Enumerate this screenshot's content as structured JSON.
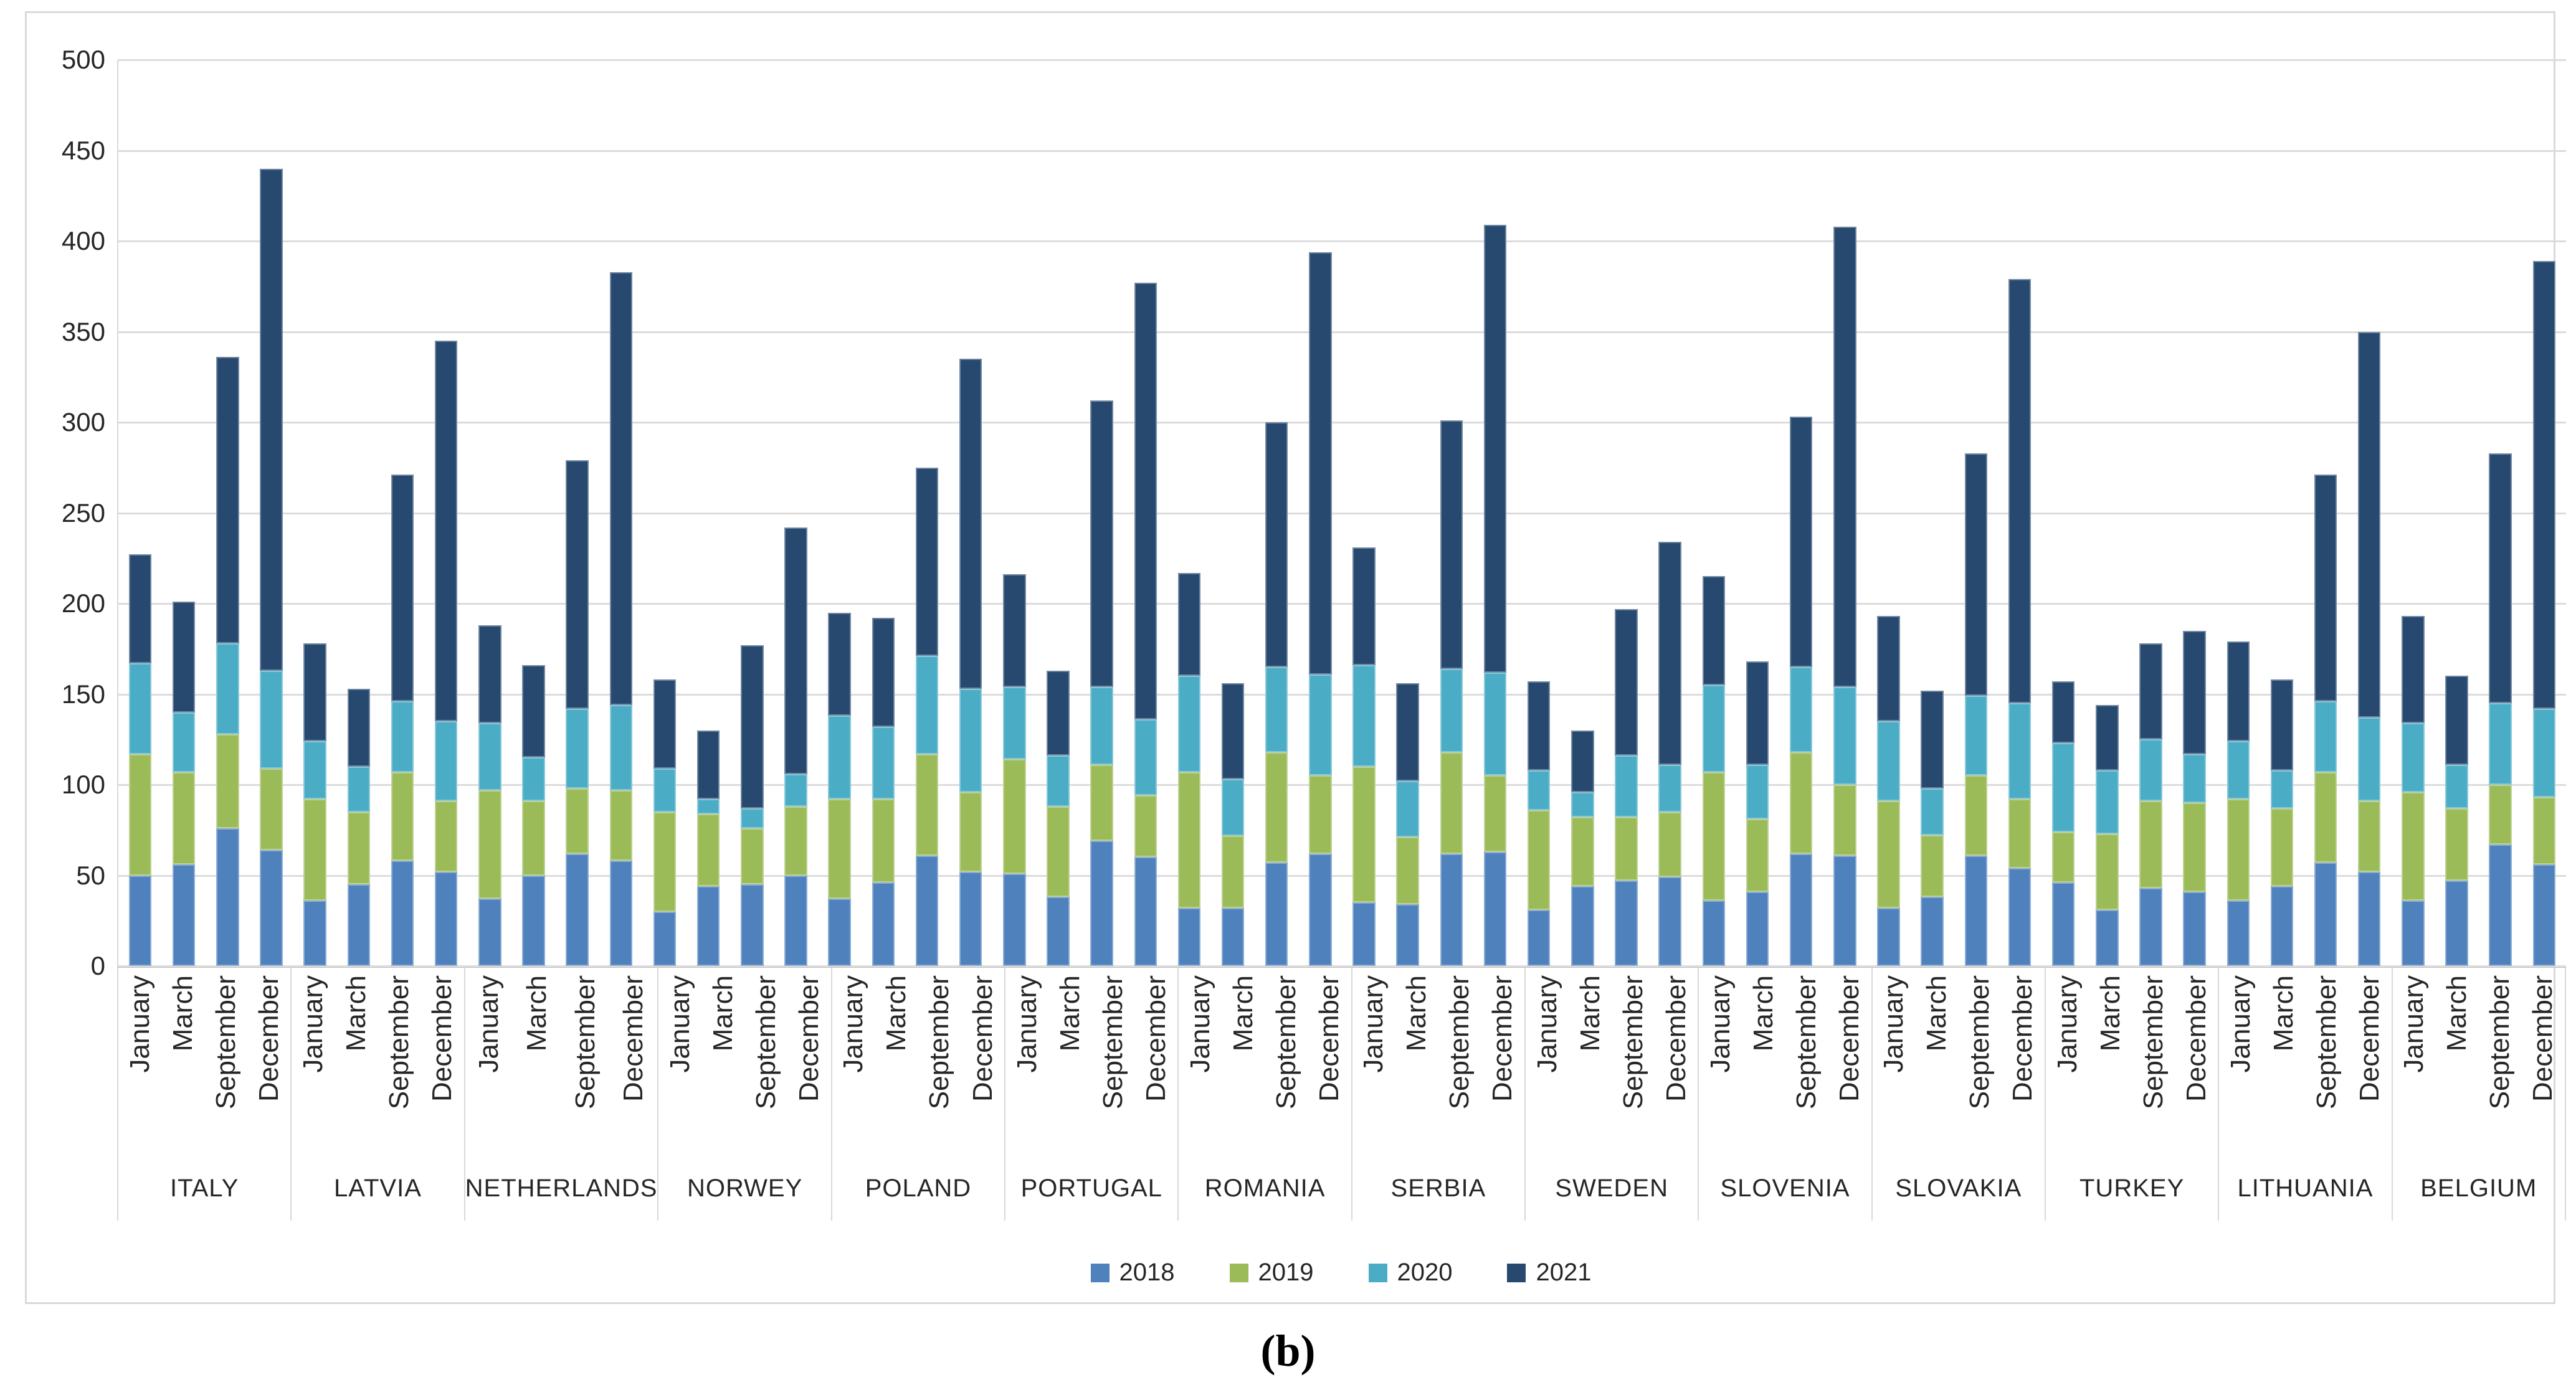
{
  "figure": {
    "caption": "(b)"
  },
  "chart_data": {
    "type": "bar",
    "stacked": true,
    "title": "",
    "xlabel": "",
    "ylabel": "",
    "ylim": [
      0,
      500
    ],
    "y_ticks": [
      0,
      50,
      100,
      150,
      200,
      250,
      300,
      350,
      400,
      450,
      500
    ],
    "grid": true,
    "legend_position": "bottom",
    "months": [
      "January",
      "March",
      "September",
      "December"
    ],
    "series": [
      {
        "name": "2018",
        "color": "#4F81BD"
      },
      {
        "name": "2019",
        "color": "#9BBB59"
      },
      {
        "name": "2020",
        "color": "#4BACC6"
      },
      {
        "name": "2021",
        "color": "#27496F"
      }
    ],
    "groups": [
      {
        "country": "ITALY",
        "values": {
          "2018": [
            50,
            56,
            76,
            64
          ],
          "2019": [
            67,
            51,
            52,
            45
          ],
          "2020": [
            50,
            33,
            50,
            54
          ],
          "2021": [
            60,
            61,
            158,
            277
          ]
        }
      },
      {
        "country": "LATVIA",
        "values": {
          "2018": [
            36,
            45,
            58,
            52
          ],
          "2019": [
            56,
            40,
            49,
            39
          ],
          "2020": [
            32,
            25,
            39,
            44
          ],
          "2021": [
            54,
            43,
            125,
            210
          ]
        }
      },
      {
        "country": "NETHERLANDS",
        "values": {
          "2018": [
            37,
            50,
            62,
            58
          ],
          "2019": [
            60,
            41,
            36,
            39
          ],
          "2020": [
            37,
            24,
            44,
            47
          ],
          "2021": [
            54,
            51,
            137,
            239
          ]
        }
      },
      {
        "country": "NORWEY",
        "values": {
          "2018": [
            30,
            44,
            45,
            50
          ],
          "2019": [
            55,
            40,
            31,
            38
          ],
          "2020": [
            24,
            8,
            11,
            18
          ],
          "2021": [
            49,
            38,
            90,
            136
          ]
        }
      },
      {
        "country": "POLAND",
        "values": {
          "2018": [
            37,
            46,
            61,
            52
          ],
          "2019": [
            55,
            46,
            56,
            44
          ],
          "2020": [
            46,
            40,
            54,
            57
          ],
          "2021": [
            57,
            60,
            104,
            182
          ]
        }
      },
      {
        "country": "PORTUGAL",
        "values": {
          "2018": [
            51,
            38,
            69,
            60
          ],
          "2019": [
            63,
            50,
            42,
            34
          ],
          "2020": [
            40,
            28,
            43,
            42
          ],
          "2021": [
            62,
            47,
            158,
            241
          ]
        }
      },
      {
        "country": "ROMANIA",
        "values": {
          "2018": [
            32,
            32,
            57,
            62
          ],
          "2019": [
            75,
            40,
            61,
            43
          ],
          "2020": [
            53,
            31,
            47,
            56
          ],
          "2021": [
            57,
            53,
            135,
            233
          ]
        }
      },
      {
        "country": "SERBIA",
        "values": {
          "2018": [
            35,
            34,
            62,
            63
          ],
          "2019": [
            75,
            37,
            56,
            42
          ],
          "2020": [
            56,
            31,
            46,
            57
          ],
          "2021": [
            65,
            54,
            137,
            247
          ]
        }
      },
      {
        "country": "SWEDEN",
        "values": {
          "2018": [
            31,
            44,
            47,
            49
          ],
          "2019": [
            55,
            38,
            35,
            36
          ],
          "2020": [
            22,
            14,
            34,
            26
          ],
          "2021": [
            49,
            34,
            81,
            123
          ]
        }
      },
      {
        "country": "SLOVENIA",
        "values": {
          "2018": [
            36,
            41,
            62,
            61
          ],
          "2019": [
            71,
            40,
            56,
            39
          ],
          "2020": [
            48,
            30,
            47,
            54
          ],
          "2021": [
            60,
            57,
            138,
            254
          ]
        }
      },
      {
        "country": "SLOVAKIA",
        "values": {
          "2018": [
            32,
            38,
            61,
            54
          ],
          "2019": [
            59,
            34,
            44,
            38
          ],
          "2020": [
            44,
            26,
            44,
            53
          ],
          "2021": [
            58,
            54,
            134,
            234
          ]
        }
      },
      {
        "country": "TURKEY",
        "values": {
          "2018": [
            46,
            31,
            43,
            41
          ],
          "2019": [
            28,
            42,
            48,
            49
          ],
          "2020": [
            49,
            35,
            34,
            27
          ],
          "2021": [
            34,
            36,
            53,
            68
          ]
        }
      },
      {
        "country": "LITHUANIA",
        "values": {
          "2018": [
            36,
            44,
            57,
            52
          ],
          "2019": [
            56,
            43,
            50,
            39
          ],
          "2020": [
            32,
            21,
            39,
            46
          ],
          "2021": [
            55,
            50,
            125,
            213
          ]
        }
      },
      {
        "country": "BELGIUM",
        "values": {
          "2018": [
            36,
            47,
            67,
            56
          ],
          "2019": [
            60,
            40,
            33,
            37
          ],
          "2020": [
            38,
            24,
            45,
            49
          ],
          "2021": [
            59,
            49,
            138,
            247
          ]
        }
      }
    ]
  }
}
